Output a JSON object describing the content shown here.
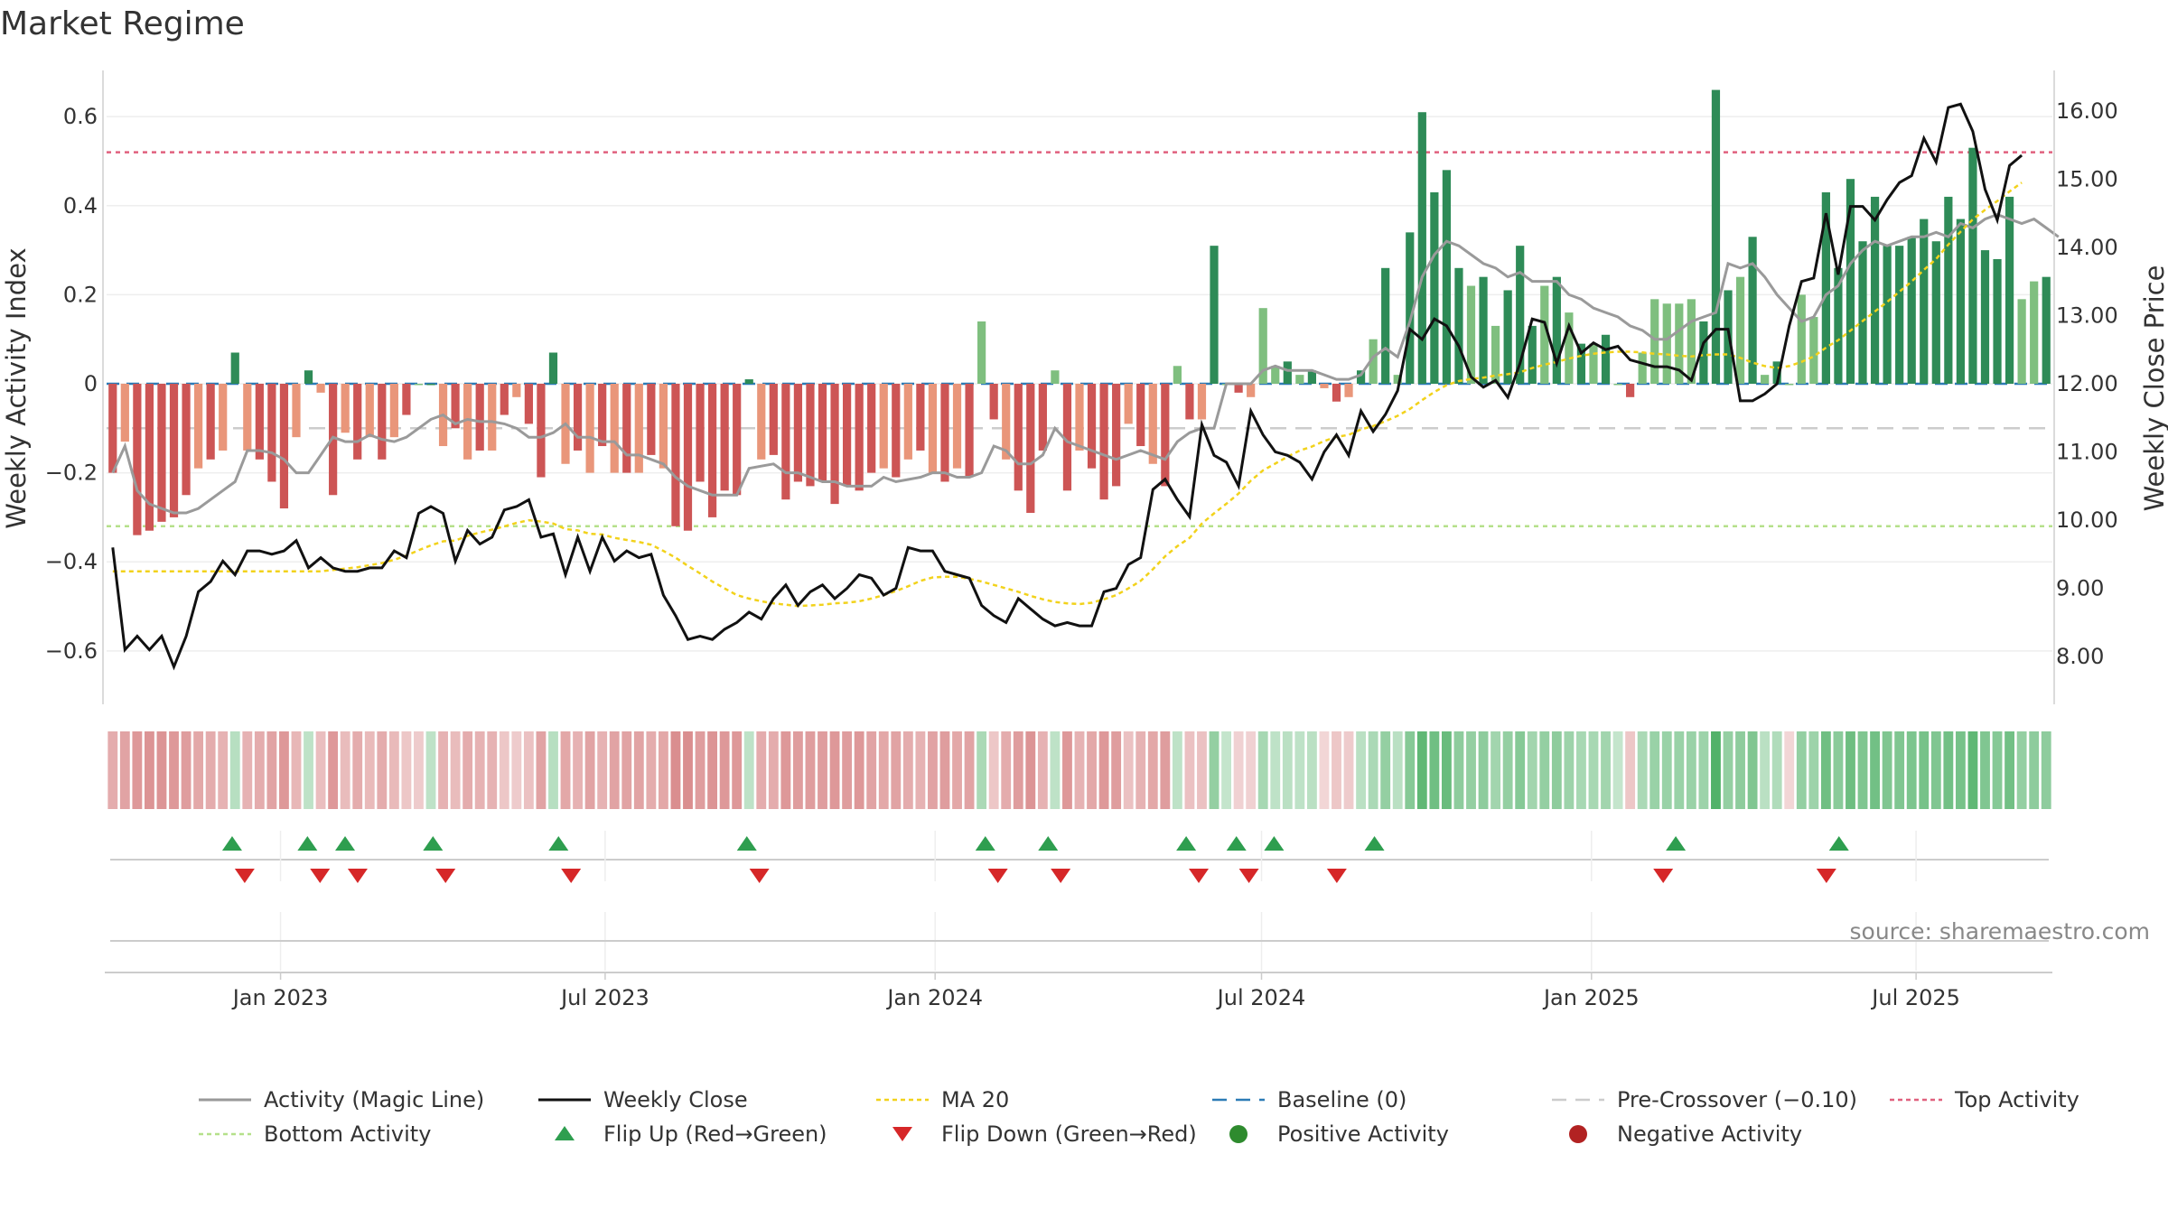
{
  "chart_data": {
    "type": "bar",
    "title": "Market Regime",
    "ylabel_left": "Weekly Activity Index",
    "ylabel_right": "Weekly Close Price",
    "y_left_ticks": [
      "0.6",
      "0.4",
      "0.2",
      "0",
      "−0.2",
      "−0.4",
      "−0.6"
    ],
    "y_left_tick_values": [
      0.6,
      0.4,
      0.2,
      0,
      -0.2,
      -0.4,
      -0.6
    ],
    "y_right_ticks": [
      "16.00",
      "15.00",
      "14.00",
      "13.00",
      "12.00",
      "11.00",
      "10.00",
      "9.00",
      "8.00"
    ],
    "y_right_tick_values": [
      16,
      15,
      14,
      13,
      12,
      11,
      10,
      9,
      8
    ],
    "ylim_left": [
      -0.72,
      0.72
    ],
    "ylim_right": [
      7.3,
      16.7
    ],
    "x_date_range": [
      "2022-09-26",
      "2025-09-15"
    ],
    "x_ticks": [
      "Jan 2023",
      "Jul 2023",
      "Jan 2024",
      "Jul 2024",
      "Jan 2025",
      "Jul 2025"
    ],
    "x_tick_dates": [
      "2023-01-01",
      "2023-07-01",
      "2024-01-01",
      "2024-07-01",
      "2025-01-01",
      "2025-07-01"
    ],
    "reference_lines": {
      "top_activity": 0.52,
      "bottom_activity": -0.32,
      "baseline": 0,
      "pre_crossover": -0.1
    },
    "source_note": "source: sharemaestro.com",
    "activity_bars": [
      -0.2,
      -0.13,
      -0.34,
      -0.33,
      -0.31,
      -0.3,
      -0.25,
      -0.19,
      -0.17,
      -0.15,
      0.07,
      -0.15,
      -0.17,
      -0.22,
      -0.28,
      -0.12,
      0.03,
      -0.02,
      -0.25,
      -0.11,
      -0.17,
      -0.12,
      -0.17,
      -0.12,
      -0.07,
      0.0,
      0.0,
      -0.14,
      -0.1,
      -0.17,
      -0.15,
      -0.15,
      -0.07,
      -0.03,
      -0.09,
      -0.21,
      0.07,
      -0.18,
      -0.15,
      -0.2,
      -0.14,
      -0.2,
      -0.2,
      -0.2,
      -0.16,
      -0.19,
      -0.32,
      -0.33,
      -0.22,
      -0.3,
      -0.24,
      -0.25,
      0.01,
      -0.17,
      -0.16,
      -0.26,
      -0.22,
      -0.23,
      -0.22,
      -0.27,
      -0.23,
      -0.24,
      -0.2,
      -0.19,
      -0.21,
      -0.17,
      -0.15,
      -0.2,
      -0.22,
      -0.19,
      -0.21,
      0.14,
      -0.08,
      -0.17,
      -0.24,
      -0.29,
      -0.15,
      0.03,
      -0.24,
      -0.15,
      -0.19,
      -0.26,
      -0.23,
      -0.09,
      -0.14,
      -0.18,
      -0.23,
      0.04,
      -0.08,
      -0.08,
      0.31,
      0.0,
      -0.02,
      -0.03,
      0.17,
      0.04,
      0.05,
      0.02,
      0.03,
      -0.01,
      -0.04,
      -0.03,
      0.03,
      0.1,
      0.26,
      0.02,
      0.34,
      0.61,
      0.43,
      0.48,
      0.26,
      0.22,
      0.24,
      0.13,
      0.21,
      0.31,
      0.13,
      0.22,
      0.24,
      0.16,
      0.09,
      0.09,
      0.11,
      0.0,
      -0.03,
      0.07,
      0.19,
      0.18,
      0.18,
      0.19,
      0.14,
      0.66,
      0.21,
      0.24,
      0.33,
      0.02,
      0.05,
      0.0,
      0.2,
      0.15,
      0.43,
      0.26,
      0.46,
      0.32,
      0.42,
      0.31,
      0.31,
      0.33,
      0.37,
      0.32,
      0.42,
      0.37,
      0.53,
      0.3,
      0.28,
      0.42,
      0.19,
      0.23,
      0.24
    ],
    "magic_line": [
      -0.2,
      -0.14,
      -0.24,
      -0.27,
      -0.28,
      -0.29,
      -0.29,
      -0.28,
      -0.26,
      -0.24,
      -0.22,
      -0.15,
      -0.15,
      -0.155,
      -0.17,
      -0.2,
      -0.2,
      -0.16,
      -0.12,
      -0.13,
      -0.13,
      -0.115,
      -0.125,
      -0.13,
      -0.12,
      -0.1,
      -0.08,
      -0.07,
      -0.09,
      -0.08,
      -0.085,
      -0.085,
      -0.09,
      -0.1,
      -0.12,
      -0.12,
      -0.11,
      -0.09,
      -0.12,
      -0.12,
      -0.13,
      -0.13,
      -0.16,
      -0.16,
      -0.17,
      -0.18,
      -0.21,
      -0.23,
      -0.24,
      -0.25,
      -0.25,
      -0.25,
      -0.19,
      -0.185,
      -0.18,
      -0.2,
      -0.2,
      -0.21,
      -0.22,
      -0.22,
      -0.23,
      -0.23,
      -0.23,
      -0.21,
      -0.22,
      -0.215,
      -0.21,
      -0.2,
      -0.2,
      -0.21,
      -0.21,
      -0.2,
      -0.14,
      -0.15,
      -0.18,
      -0.18,
      -0.16,
      -0.1,
      -0.13,
      -0.14,
      -0.15,
      -0.16,
      -0.17,
      -0.16,
      -0.15,
      -0.16,
      -0.17,
      -0.13,
      -0.11,
      -0.1,
      -0.1,
      0.0,
      0.0,
      0.0,
      0.03,
      0.04,
      0.03,
      0.03,
      0.03,
      0.02,
      0.01,
      0.01,
      0.02,
      0.06,
      0.08,
      0.06,
      0.14,
      0.24,
      0.29,
      0.32,
      0.31,
      0.29,
      0.27,
      0.26,
      0.24,
      0.25,
      0.23,
      0.23,
      0.23,
      0.2,
      0.19,
      0.17,
      0.16,
      0.15,
      0.13,
      0.12,
      0.1,
      0.1,
      0.12,
      0.14,
      0.15,
      0.16,
      0.27,
      0.26,
      0.27,
      0.24,
      0.2,
      0.17,
      0.14,
      0.15,
      0.2,
      0.22,
      0.27,
      0.3,
      0.32,
      0.31,
      0.32,
      0.33,
      0.33,
      0.34,
      0.33,
      0.36,
      0.35,
      0.37,
      0.38,
      0.37,
      0.36,
      0.37,
      0.35,
      0.33
    ],
    "weekly_close": [
      9.6,
      8.1,
      8.3,
      8.1,
      8.3,
      7.85,
      8.3,
      8.95,
      9.1,
      9.4,
      9.2,
      9.55,
      9.55,
      9.5,
      9.55,
      9.7,
      9.3,
      9.45,
      9.3,
      9.25,
      9.25,
      9.3,
      9.3,
      9.55,
      9.45,
      10.1,
      10.2,
      10.1,
      9.4,
      9.85,
      9.65,
      9.75,
      10.15,
      10.2,
      10.3,
      9.75,
      9.8,
      9.2,
      9.75,
      9.25,
      9.75,
      9.4,
      9.55,
      9.45,
      9.5,
      8.9,
      8.6,
      8.25,
      8.3,
      8.25,
      8.4,
      8.5,
      8.65,
      8.55,
      8.85,
      9.05,
      8.75,
      8.95,
      9.05,
      8.85,
      9.0,
      9.2,
      9.15,
      8.9,
      9.0,
      9.6,
      9.55,
      9.55,
      9.25,
      9.2,
      9.15,
      8.75,
      8.6,
      8.5,
      8.85,
      8.7,
      8.55,
      8.45,
      8.5,
      8.45,
      8.45,
      8.95,
      9.0,
      9.35,
      9.45,
      10.45,
      10.6,
      10.3,
      10.05,
      11.4,
      10.95,
      10.85,
      10.5,
      11.6,
      11.25,
      11.0,
      10.95,
      10.85,
      10.6,
      11.0,
      11.25,
      10.95,
      11.6,
      11.3,
      11.55,
      11.9,
      12.8,
      12.65,
      12.95,
      12.85,
      12.55,
      12.1,
      11.95,
      12.05,
      11.8,
      12.3,
      12.95,
      12.9,
      12.3,
      12.85,
      12.45,
      12.6,
      12.5,
      12.55,
      12.35,
      12.3,
      12.25,
      12.25,
      12.2,
      12.05,
      12.6,
      12.8,
      12.8,
      11.75,
      11.75,
      11.85,
      12.0,
      12.85,
      13.5,
      13.55,
      14.5,
      13.6,
      14.6,
      14.6,
      14.4,
      14.7,
      14.95,
      15.05,
      15.6,
      15.25,
      16.05,
      16.1,
      15.7,
      14.85,
      14.4,
      15.2,
      15.35
    ],
    "ma20": [
      9.25,
      9.25,
      9.25,
      9.25,
      9.25,
      9.25,
      9.25,
      9.25,
      9.25,
      9.25,
      9.25,
      9.25,
      9.25,
      9.25,
      9.25,
      9.25,
      9.25,
      9.25,
      9.27,
      9.29,
      9.31,
      9.34,
      9.37,
      9.42,
      9.48,
      9.56,
      9.63,
      9.69,
      9.7,
      9.77,
      9.82,
      9.86,
      9.91,
      9.96,
      10.0,
      9.98,
      9.95,
      9.87,
      9.85,
      9.8,
      9.79,
      9.74,
      9.71,
      9.68,
      9.64,
      9.55,
      9.45,
      9.33,
      9.22,
      9.1,
      9.0,
      8.9,
      8.85,
      8.81,
      8.78,
      8.76,
      8.74,
      8.75,
      8.76,
      8.78,
      8.79,
      8.81,
      8.85,
      8.9,
      8.96,
      9.03,
      9.11,
      9.16,
      9.17,
      9.17,
      9.14,
      9.1,
      9.05,
      9.0,
      8.95,
      8.89,
      8.84,
      8.8,
      8.78,
      8.77,
      8.79,
      8.84,
      8.9,
      9.0,
      9.11,
      9.28,
      9.47,
      9.62,
      9.74,
      9.95,
      10.1,
      10.24,
      10.39,
      10.58,
      10.73,
      10.83,
      10.93,
      11.02,
      11.08,
      11.16,
      11.22,
      11.25,
      11.33,
      11.38,
      11.45,
      11.53,
      11.63,
      11.76,
      11.88,
      11.98,
      12.04,
      12.07,
      12.09,
      12.12,
      12.14,
      12.17,
      12.23,
      12.28,
      12.32,
      12.37,
      12.41,
      12.44,
      12.46,
      12.47,
      12.47,
      12.46,
      12.44,
      12.43,
      12.41,
      12.4,
      12.42,
      12.43,
      12.43,
      12.38,
      12.31,
      12.26,
      12.23,
      12.26,
      12.32,
      12.4,
      12.53,
      12.64,
      12.78,
      12.92,
      13.06,
      13.2,
      13.35,
      13.5,
      13.67,
      13.83,
      14.04,
      14.23,
      14.41,
      14.55,
      14.68,
      14.82,
      14.95
    ],
    "regime_band": [
      0.22,
      0.26,
      0.3,
      0.32,
      0.32,
      0.3,
      0.28,
      0.24,
      0.22,
      0.2,
      -0.15,
      0.2,
      0.22,
      0.26,
      0.3,
      0.18,
      -0.12,
      0.15,
      0.3,
      0.16,
      0.22,
      0.17,
      0.22,
      0.17,
      0.12,
      0.1,
      -0.12,
      0.2,
      0.16,
      0.22,
      0.2,
      0.2,
      0.12,
      0.1,
      0.14,
      0.26,
      -0.15,
      0.24,
      0.2,
      0.26,
      0.2,
      0.26,
      0.26,
      0.26,
      0.22,
      0.24,
      0.34,
      0.34,
      0.28,
      0.32,
      0.3,
      0.3,
      -0.12,
      0.22,
      0.22,
      0.3,
      0.28,
      0.28,
      0.28,
      0.3,
      0.28,
      0.3,
      0.26,
      0.24,
      0.26,
      0.22,
      0.2,
      0.26,
      0.28,
      0.24,
      0.26,
      -0.2,
      0.12,
      0.22,
      0.28,
      0.32,
      0.2,
      -0.12,
      0.3,
      0.2,
      0.24,
      0.3,
      0.28,
      0.14,
      0.2,
      0.24,
      0.28,
      -0.12,
      0.14,
      0.14,
      -0.3,
      -0.1,
      0.08,
      0.08,
      -0.22,
      -0.12,
      -0.14,
      -0.12,
      -0.14,
      0.06,
      0.12,
      0.1,
      -0.14,
      -0.2,
      -0.3,
      -0.14,
      -0.36,
      -0.52,
      -0.45,
      -0.48,
      -0.32,
      -0.3,
      -0.32,
      -0.24,
      -0.3,
      -0.36,
      -0.24,
      -0.3,
      -0.32,
      -0.26,
      -0.22,
      -0.22,
      -0.24,
      -0.1,
      0.12,
      -0.2,
      -0.28,
      -0.28,
      -0.28,
      -0.28,
      -0.26,
      -0.58,
      -0.3,
      -0.32,
      -0.38,
      -0.14,
      -0.18,
      0.06,
      -0.3,
      -0.26,
      -0.45,
      -0.34,
      -0.46,
      -0.38,
      -0.44,
      -0.38,
      -0.38,
      -0.4,
      -0.42,
      -0.38,
      -0.44,
      -0.42,
      -0.52,
      -0.38,
      -0.36,
      -0.44,
      -0.3,
      -0.32,
      -0.32
    ],
    "flip_up_dates": [
      "2022-12-05",
      "2023-01-16",
      "2023-02-06",
      "2023-03-27",
      "2023-06-05",
      "2023-09-18",
      "2024-01-29",
      "2024-03-04",
      "2024-05-20",
      "2024-06-17",
      "2024-07-08",
      "2024-09-02",
      "2025-02-17",
      "2025-05-19"
    ],
    "flip_down_dates": [
      "2022-12-12",
      "2023-01-23",
      "2023-02-13",
      "2023-04-03",
      "2023-06-12",
      "2023-09-25",
      "2024-02-05",
      "2024-03-11",
      "2024-05-27",
      "2024-06-24",
      "2024-08-12",
      "2025-02-10",
      "2025-05-12"
    ],
    "legend": [
      {
        "key": "magic",
        "label": "Activity (Magic Line)",
        "color": "#999999"
      },
      {
        "key": "close",
        "label": "Weekly Close",
        "color": "#111111"
      },
      {
        "key": "ma",
        "label": "MA 20",
        "color": "#f2d21b"
      },
      {
        "key": "base",
        "label": "Baseline (0)",
        "color": "#2c7bb6"
      },
      {
        "key": "pre",
        "label": "Pre-Crossover (−0.10)",
        "color": "#cccccc"
      },
      {
        "key": "top",
        "label": "Top Activity",
        "color": "#e0607e"
      },
      {
        "key": "bottom",
        "label": "Bottom Activity",
        "color": "#b5e08a"
      },
      {
        "key": "up",
        "label": "Flip Up (Red→Green)",
        "color": "#2e9e4f"
      },
      {
        "key": "down",
        "label": "Flip Down (Green→Red)",
        "color": "#d62728"
      },
      {
        "key": "pos",
        "label": "Positive Activity",
        "color": "#2e8b2e"
      },
      {
        "key": "neg",
        "label": "Negative Activity",
        "color": "#b22222"
      }
    ],
    "colors": {
      "pos_strong": "#2e8b57",
      "pos_light": "#7fbf7f",
      "neg_strong": "#cd5555",
      "neg_light": "#e9967a",
      "band_green": "#4caf64",
      "band_red": "#d9898a"
    }
  }
}
